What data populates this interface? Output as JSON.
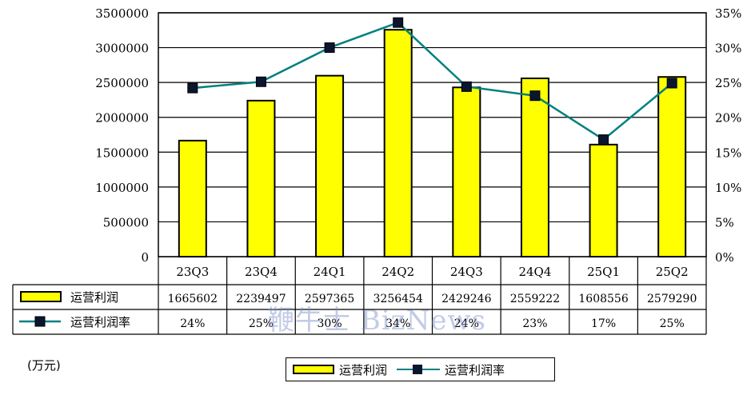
{
  "chart_data": {
    "type": "bar",
    "categories": [
      "23Q3",
      "23Q4",
      "24Q1",
      "24Q2",
      "24Q3",
      "24Q4",
      "25Q1",
      "25Q2"
    ],
    "series": [
      {
        "name": "运营利润",
        "type": "bar",
        "axis": "left",
        "values": [
          1665602,
          2239497,
          2597365,
          3256454,
          2429246,
          2559222,
          1608556,
          2579290
        ],
        "color": "#ffff00"
      },
      {
        "name": "运营利润率",
        "type": "line",
        "axis": "right",
        "values": [
          24.2,
          25.1,
          30.0,
          33.6,
          24.4,
          23.1,
          16.8,
          24.9
        ],
        "labels": [
          "24%",
          "25%",
          "30%",
          "34%",
          "24%",
          "23%",
          "17%",
          "25%"
        ],
        "color": "#008080",
        "marker_color": "#0a1630"
      }
    ],
    "ylim": [
      0,
      3500000
    ],
    "y_ticks": [
      "0",
      "500000",
      "1000000",
      "1500000",
      "2000000",
      "2500000",
      "3000000",
      "3500000"
    ],
    "y2lim": [
      0,
      35
    ],
    "y2_ticks": [
      "0%",
      "5%",
      "10%",
      "15%",
      "20%",
      "25%",
      "30%",
      "35%"
    ],
    "grid": true,
    "data_table": true,
    "legend_position": "bottom"
  },
  "unit_label": "(万元)",
  "watermark": "鞭牛士 BizNews"
}
